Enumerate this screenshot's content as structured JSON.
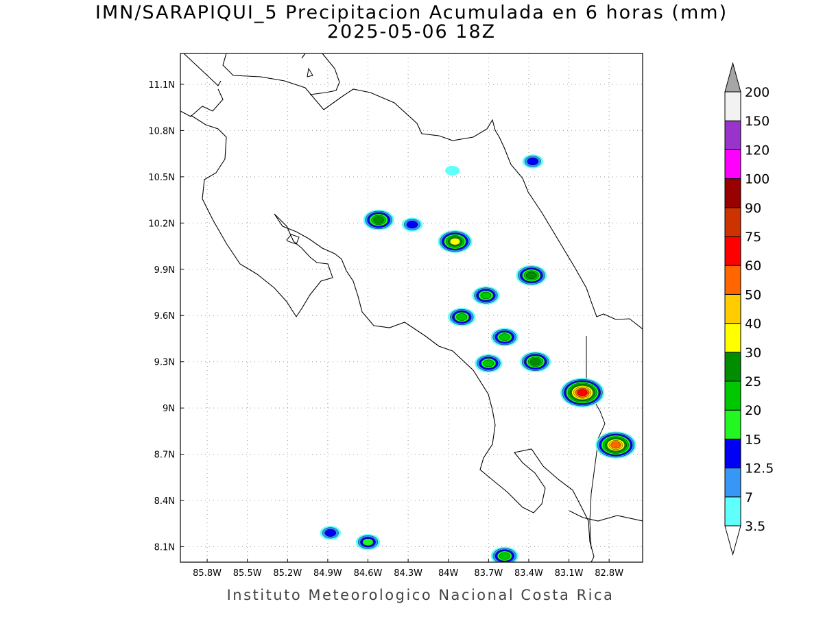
{
  "title": "IMN/SARAPIQUI_5 Precipitacion Acumulada en 6 horas (mm)",
  "subtitle": "2025-05-06 18Z",
  "credit": "Instituto Meteorologico Nacional Costa Rica",
  "map": {
    "lon_range": [
      -86.0,
      -82.55
    ],
    "lat_range": [
      8.0,
      11.3
    ],
    "gridlines": true,
    "lon_ticks": [
      {
        "label": "85.8W",
        "value": -85.8
      },
      {
        "label": "85.5W",
        "value": -85.5
      },
      {
        "label": "85.2W",
        "value": -85.2
      },
      {
        "label": "84.9W",
        "value": -84.9
      },
      {
        "label": "84.6W",
        "value": -84.6
      },
      {
        "label": "84.3W",
        "value": -84.3
      },
      {
        "label": "84W",
        "value": -84.0
      },
      {
        "label": "83.7W",
        "value": -83.7
      },
      {
        "label": "83.4W",
        "value": -83.4
      },
      {
        "label": "83.1W",
        "value": -83.1
      },
      {
        "label": "82.8W",
        "value": -82.8
      }
    ],
    "lat_ticks": [
      {
        "label": "11.1N",
        "value": 11.1
      },
      {
        "label": "10.8N",
        "value": 10.8
      },
      {
        "label": "10.5N",
        "value": 10.5
      },
      {
        "label": "10.2N",
        "value": 10.2
      },
      {
        "label": "9.9N",
        "value": 9.9
      },
      {
        "label": "9.6N",
        "value": 9.6
      },
      {
        "label": "9.3N",
        "value": 9.3
      },
      {
        "label": "9N",
        "value": 9.0
      },
      {
        "label": "8.7N",
        "value": 8.7
      },
      {
        "label": "8.4N",
        "value": 8.4
      },
      {
        "label": "8.1N",
        "value": 8.1
      }
    ]
  },
  "colorbar": {
    "unit": "mm",
    "levels": [
      {
        "label": "3.5",
        "color": "#5ffffb"
      },
      {
        "label": "7",
        "color": "#3697f6"
      },
      {
        "label": "12.5",
        "color": "#0000f5"
      },
      {
        "label": "15",
        "color": "#22f722"
      },
      {
        "label": "20",
        "color": "#00c800"
      },
      {
        "label": "25",
        "color": "#008d00"
      },
      {
        "label": "30",
        "color": "#ffff00"
      },
      {
        "label": "40",
        "color": "#ffcc00"
      },
      {
        "label": "50",
        "color": "#ff6600"
      },
      {
        "label": "60",
        "color": "#ff0000"
      },
      {
        "label": "75",
        "color": "#cc3300"
      },
      {
        "label": "90",
        "color": "#990000"
      },
      {
        "label": "100",
        "color": "#ff00ff"
      },
      {
        "label": "120",
        "color": "#9933cc"
      },
      {
        "label": "150",
        "color": "#f2f2f2"
      },
      {
        "label": "200",
        "color": "#a6a6a6"
      }
    ]
  },
  "precip_cells": [
    {
      "lon": -84.52,
      "lat": 10.22,
      "mm": 25
    },
    {
      "lon": -84.27,
      "lat": 10.19,
      "mm": 12.5
    },
    {
      "lon": -83.95,
      "lat": 10.08,
      "mm": 30
    },
    {
      "lon": -83.97,
      "lat": 10.54,
      "mm": 3.5
    },
    {
      "lon": -83.37,
      "lat": 10.6,
      "mm": 12.5
    },
    {
      "lon": -83.38,
      "lat": 9.86,
      "mm": 25
    },
    {
      "lon": -83.72,
      "lat": 9.73,
      "mm": 20
    },
    {
      "lon": -83.9,
      "lat": 9.59,
      "mm": 20
    },
    {
      "lon": -83.58,
      "lat": 9.46,
      "mm": 20
    },
    {
      "lon": -83.7,
      "lat": 9.29,
      "mm": 20
    },
    {
      "lon": -83.35,
      "lat": 9.3,
      "mm": 25
    },
    {
      "lon": -83.0,
      "lat": 9.1,
      "mm": 60
    },
    {
      "lon": -82.75,
      "lat": 8.76,
      "mm": 50
    },
    {
      "lon": -83.58,
      "lat": 8.04,
      "mm": 20
    },
    {
      "lon": -84.88,
      "lat": 8.19,
      "mm": 12.5
    },
    {
      "lon": -84.6,
      "lat": 8.13,
      "mm": 15
    }
  ]
}
